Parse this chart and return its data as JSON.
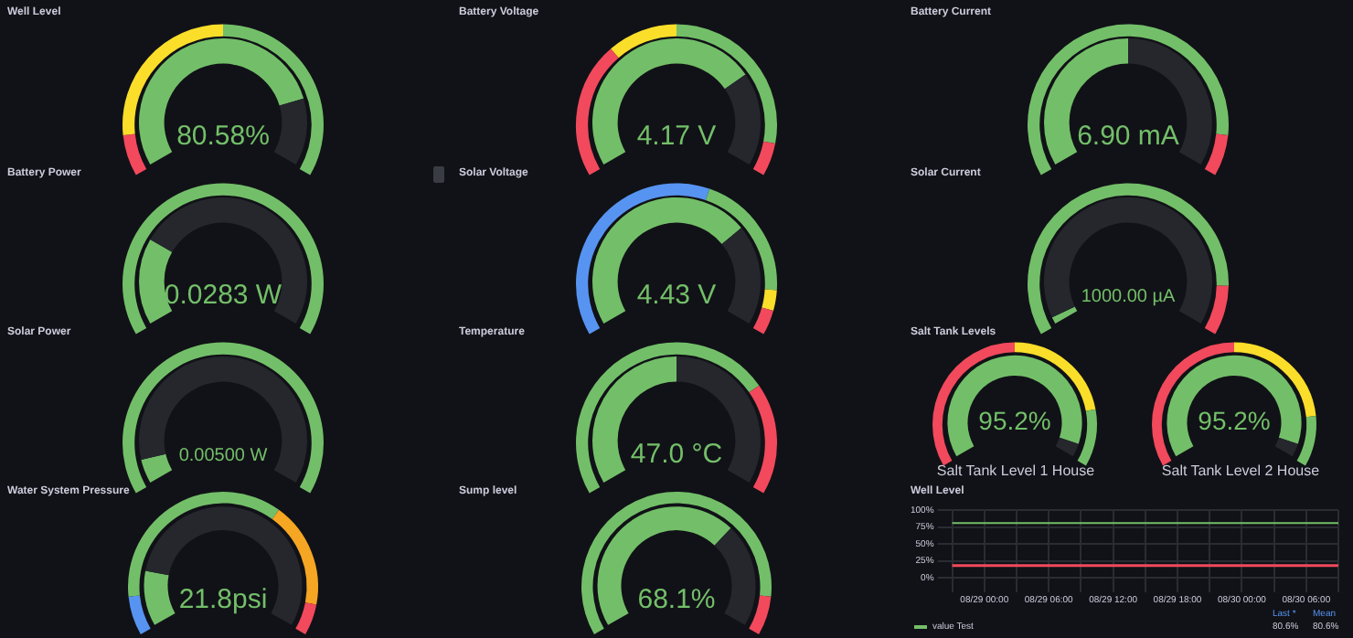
{
  "chart_data": [
    {
      "type": "donut",
      "title": "Well Level",
      "annotations": [
        "80.58%"
      ],
      "categories": [
        null,
        null
      ],
      "values": [
        80.58,
        19.42
      ],
      "colors": [
        "#73bf69",
        "#25272d"
      ]
    },
    {
      "type": "donut",
      "categories": [
        null,
        null,
        null
      ],
      "values": [
        10,
        40,
        50
      ],
      "colors": [
        "#f2495c",
        "#fade2a",
        "#73bf69"
      ]
    },
    {
      "type": "donut",
      "title": "Battery Voltage",
      "annotations": [
        "4.17 V"
      ],
      "categories": [
        null,
        null
      ],
      "values": [
        73,
        27
      ],
      "colors": [
        "#73bf69",
        "#25272d"
      ]
    },
    {
      "type": "donut",
      "categories": [
        null,
        null,
        null,
        null
      ],
      "values": [
        33,
        17,
        42,
        8
      ],
      "colors": [
        "#f2495c",
        "#fade2a",
        "#73bf69",
        "#f2495c"
      ]
    },
    {
      "type": "donut",
      "title": "Battery Current",
      "annotations": [
        "6.90 mA"
      ],
      "categories": [
        null,
        null
      ],
      "values": [
        50,
        50
      ],
      "colors": [
        "#73bf69",
        "#25272d"
      ]
    },
    {
      "type": "donut",
      "categories": [
        null,
        null
      ],
      "values": [
        90,
        10
      ],
      "colors": [
        "#73bf69",
        "#f2495c"
      ]
    },
    {
      "type": "donut",
      "title": "Battery Power",
      "annotations": [
        "0.0283 W"
      ],
      "categories": [
        null,
        null
      ],
      "values": [
        25,
        75
      ],
      "colors": [
        "#73bf69",
        "#25272d"
      ]
    },
    {
      "type": "pie",
      "categories": [
        null
      ],
      "values": [
        100
      ],
      "colors": [
        "#73bf69"
      ]
    },
    {
      "type": "donut",
      "title": "Solar Voltage",
      "annotations": [
        "4.43 V"
      ],
      "categories": [
        null,
        null
      ],
      "values": [
        71,
        29
      ],
      "colors": [
        "#73bf69",
        "#25272d"
      ]
    },
    {
      "type": "donut",
      "categories": [
        null,
        null,
        null,
        null
      ],
      "values": [
        58,
        31,
        5,
        6
      ],
      "colors": [
        "#5794f2",
        "#73bf69",
        "#fade2a",
        "#f2495c"
      ]
    },
    {
      "type": "donut",
      "title": "Solar Current",
      "annotations": [
        "1000.00 µA"
      ],
      "categories": [
        null,
        null
      ],
      "values": [
        2,
        98
      ],
      "colors": [
        "#73bf69",
        "#25272d"
      ]
    },
    {
      "type": "donut",
      "categories": [
        null,
        null
      ],
      "values": [
        88,
        12
      ],
      "colors": [
        "#73bf69",
        "#f2495c"
      ]
    },
    {
      "type": "donut",
      "title": "Solar Power",
      "annotations": [
        "0.00500 W"
      ],
      "categories": [
        null,
        null
      ],
      "values": [
        7,
        93
      ],
      "colors": [
        "#73bf69",
        "#25272d"
      ]
    },
    {
      "type": "pie",
      "categories": [
        null
      ],
      "values": [
        100
      ],
      "colors": [
        "#73bf69"
      ]
    },
    {
      "type": "donut",
      "title": "Temperature",
      "annotations": [
        "47.0 °C"
      ],
      "categories": [
        null,
        null
      ],
      "values": [
        50,
        50
      ],
      "colors": [
        "#73bf69",
        "#25272d"
      ]
    },
    {
      "type": "donut",
      "categories": [
        null,
        null
      ],
      "values": [
        73,
        27
      ],
      "colors": [
        "#73bf69",
        "#f2495c"
      ]
    },
    {
      "type": "donut",
      "title": "Salt Tank Levels",
      "annotations": [
        "95.2%",
        "Salt Tank Level 1 House"
      ],
      "categories": [
        null,
        null
      ],
      "values": [
        95.2,
        4.8
      ],
      "colors": [
        "#73bf69",
        "#25272d"
      ]
    },
    {
      "type": "donut",
      "categories": [
        null,
        null,
        null
      ],
      "values": [
        50,
        33,
        17
      ],
      "colors": [
        "#f2495c",
        "#fade2a",
        "#73bf69"
      ]
    },
    {
      "type": "donut",
      "annotations": [
        "95.2%",
        "Salt Tank Level 2 House"
      ],
      "categories": [
        null,
        null
      ],
      "values": [
        95.2,
        4.8
      ],
      "colors": [
        "#73bf69",
        "#25272d"
      ]
    },
    {
      "type": "donut",
      "categories": [
        null,
        null,
        null
      ],
      "values": [
        50,
        35,
        15
      ],
      "colors": [
        "#f2495c",
        "#fade2a",
        "#73bf69"
      ]
    },
    {
      "type": "donut",
      "title": "Water System Pressure",
      "annotations": [
        "21.8psi"
      ],
      "categories": [
        null,
        null
      ],
      "values": [
        17,
        83
      ],
      "colors": [
        "#73bf69",
        "#25272d"
      ]
    },
    {
      "type": "donut",
      "categories": [
        null,
        null,
        null,
        null
      ],
      "values": [
        10,
        55,
        27,
        8
      ],
      "colors": [
        "#5794f2",
        "#73bf69",
        "#f5a623",
        "#f2495c"
      ]
    },
    {
      "type": "donut",
      "title": "Sump level",
      "annotations": [
        "68.1%"
      ],
      "categories": [
        null,
        null
      ],
      "values": [
        68.1,
        31.9
      ],
      "colors": [
        "#73bf69",
        "#25272d"
      ]
    },
    {
      "type": "donut",
      "categories": [
        null,
        null
      ],
      "values": [
        90,
        10
      ],
      "colors": [
        "#73bf69",
        "#f2495c"
      ]
    },
    {
      "type": "line",
      "title": "Well Level",
      "categories": [
        null,
        "08/29 00:00",
        null,
        "08/29 06:00",
        null,
        "08/29 12:00",
        null,
        "08/29 18:00",
        null,
        "08/30 00:00",
        null,
        "08/30 06:00",
        null
      ],
      "ylim": [
        0,
        100
      ],
      "yticks": [
        {
          "value": 0,
          "label": "0%"
        },
        {
          "value": 25,
          "label": "25%"
        },
        {
          "value": 50,
          "label": "50%"
        },
        {
          "value": 75,
          "label": "75%"
        },
        {
          "value": 100,
          "label": "100%"
        }
      ],
      "grid": true,
      "legend": "bottom",
      "series": [
        {
          "name": "value Test",
          "color": "#73bf69",
          "values": [
            80.6,
            80.6,
            80.6,
            80.6,
            80.6,
            80.6,
            80.6,
            80.6,
            80.6,
            80.6,
            80.6,
            80.6,
            80.6
          ]
        }
      ],
      "ref_lines": [
        {
          "axis": "y",
          "value": 18,
          "color": "#f2495c"
        }
      ],
      "annotations": [
        "Last *",
        "Mean",
        "80.6%",
        "80.6%"
      ]
    }
  ]
}
